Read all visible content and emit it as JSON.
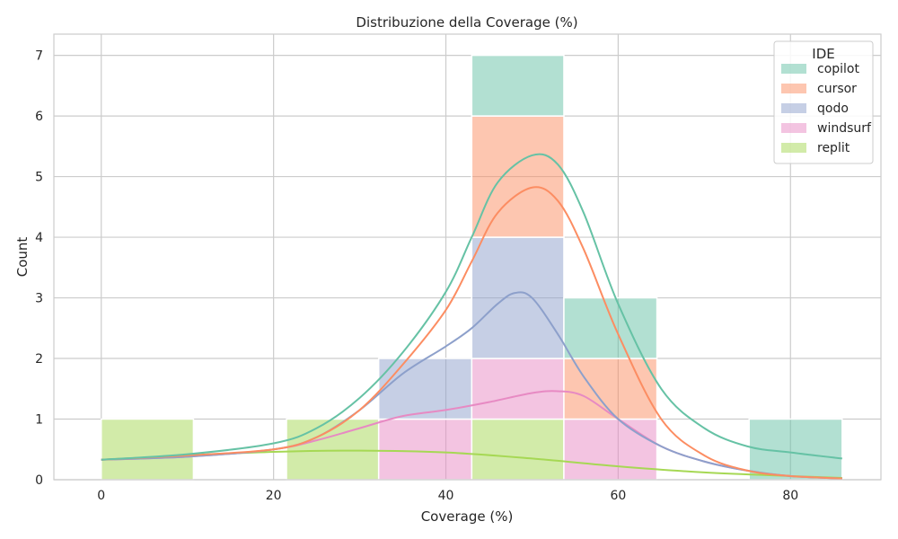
{
  "chart_data": {
    "type": "bar",
    "title": "Distribuzione della Coverage (%)",
    "xlabel": "Coverage (%)",
    "ylabel": "Count",
    "xlim": [
      -5.5,
      90.5
    ],
    "ylim": [
      0,
      7.35
    ],
    "xticks": [
      0,
      20,
      40,
      60,
      80
    ],
    "yticks": [
      0,
      1,
      2,
      3,
      4,
      5,
      6,
      7
    ],
    "grid": true,
    "stacked": true,
    "legend": {
      "title": "IDE",
      "placement": "top-right"
    },
    "bin_edges": [
      0,
      10.7,
      21.5,
      32.2,
      43.0,
      53.7,
      64.5,
      75.2,
      86.0
    ],
    "series": [
      {
        "name": "replit",
        "color": "#a6d854",
        "counts": [
          1,
          0,
          1,
          0,
          1,
          0,
          0,
          0
        ]
      },
      {
        "name": "windsurf",
        "color": "#e78ac3",
        "counts": [
          0,
          0,
          0,
          1,
          1,
          1,
          0,
          0
        ]
      },
      {
        "name": "qodo",
        "color": "#8da0cb",
        "counts": [
          0,
          0,
          0,
          1,
          2,
          0,
          0,
          0
        ]
      },
      {
        "name": "cursor",
        "color": "#fc8d62",
        "counts": [
          0,
          0,
          0,
          0,
          2,
          1,
          0,
          0
        ]
      },
      {
        "name": "copilot",
        "color": "#66c2a5",
        "counts": [
          0,
          0,
          0,
          0,
          1,
          1,
          0,
          1
        ]
      }
    ],
    "kde": [
      {
        "name": "copilot",
        "color": "#66c2a5",
        "x": [
          0,
          10,
          20,
          25,
          30,
          35,
          40,
          43,
          46,
          50,
          53,
          56,
          60,
          65,
          70,
          75,
          80,
          86
        ],
        "y": [
          0.33,
          0.42,
          0.6,
          0.85,
          1.35,
          2.1,
          3.1,
          4.0,
          4.9,
          5.35,
          5.2,
          4.4,
          2.9,
          1.5,
          0.85,
          0.55,
          0.45,
          0.35
        ]
      },
      {
        "name": "cursor",
        "color": "#fc8d62",
        "x": [
          0,
          10,
          20,
          25,
          30,
          35,
          40,
          43,
          46,
          50,
          53,
          56,
          60,
          65,
          70,
          75,
          80,
          86
        ],
        "y": [
          0.33,
          0.4,
          0.5,
          0.7,
          1.15,
          1.9,
          2.8,
          3.6,
          4.4,
          4.82,
          4.6,
          3.8,
          2.4,
          1.0,
          0.4,
          0.15,
          0.06,
          0.02
        ]
      },
      {
        "name": "qodo",
        "color": "#8da0cb",
        "x": [
          0,
          10,
          20,
          25,
          30,
          35,
          40,
          43,
          46,
          48,
          50,
          53,
          56,
          60,
          65,
          70,
          75,
          80,
          86
        ],
        "y": [
          0.33,
          0.38,
          0.5,
          0.7,
          1.15,
          1.75,
          2.2,
          2.5,
          2.9,
          3.08,
          3.0,
          2.4,
          1.7,
          1.0,
          0.55,
          0.3,
          0.15,
          0.06,
          0.02
        ]
      },
      {
        "name": "windsurf",
        "color": "#e78ac3",
        "x": [
          0,
          10,
          20,
          25,
          30,
          35,
          40,
          45,
          50,
          53,
          56,
          60,
          65,
          70,
          75,
          80,
          86
        ],
        "y": [
          0.33,
          0.38,
          0.5,
          0.65,
          0.85,
          1.05,
          1.15,
          1.28,
          1.43,
          1.46,
          1.38,
          1.0,
          0.55,
          0.3,
          0.15,
          0.06,
          0.02
        ]
      },
      {
        "name": "replit",
        "color": "#a6d854",
        "x": [
          0,
          10,
          20,
          30,
          40,
          50,
          60,
          70,
          80,
          86
        ],
        "y": [
          0.33,
          0.4,
          0.46,
          0.48,
          0.45,
          0.35,
          0.22,
          0.12,
          0.06,
          0.03
        ]
      }
    ],
    "legend_order": [
      "copilot",
      "cursor",
      "qodo",
      "windsurf",
      "replit"
    ]
  }
}
